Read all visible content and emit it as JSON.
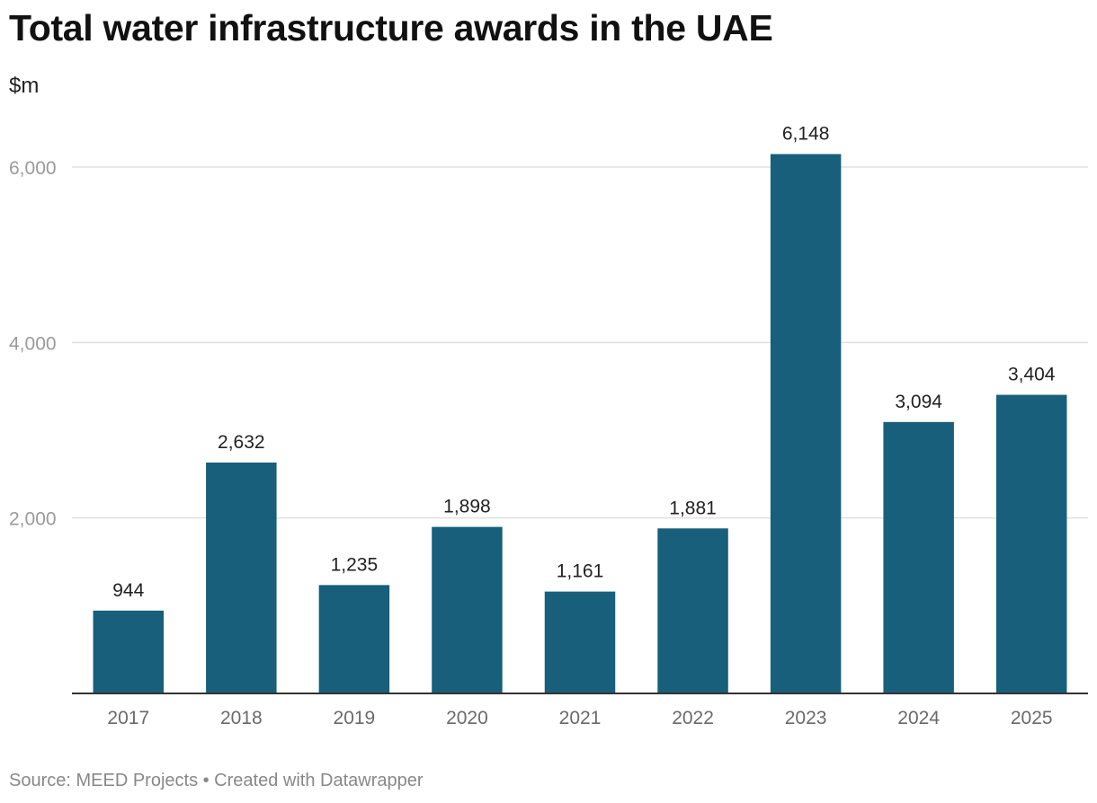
{
  "chart_data": {
    "type": "bar",
    "title": "Total water infrastructure awards in the UAE",
    "ylabel": "$m",
    "xlabel": "",
    "categories": [
      "2017",
      "2018",
      "2019",
      "2020",
      "2021",
      "2022",
      "2023",
      "2024",
      "2025"
    ],
    "values": [
      944,
      2632,
      1235,
      1898,
      1161,
      1881,
      6148,
      3094,
      3404
    ],
    "value_labels": [
      "944",
      "2,632",
      "1,235",
      "1,898",
      "1,161",
      "1,881",
      "6,148",
      "3,094",
      "3,404"
    ],
    "yticks": [
      2000,
      4000,
      6000
    ],
    "ytick_labels": [
      "2,000",
      "4,000",
      "6,000"
    ],
    "ylim": [
      0,
      6000
    ],
    "grid": true,
    "bar_color": "#175f7a"
  },
  "footer": {
    "source": "Source: MEED Projects • Created with Datawrapper"
  }
}
